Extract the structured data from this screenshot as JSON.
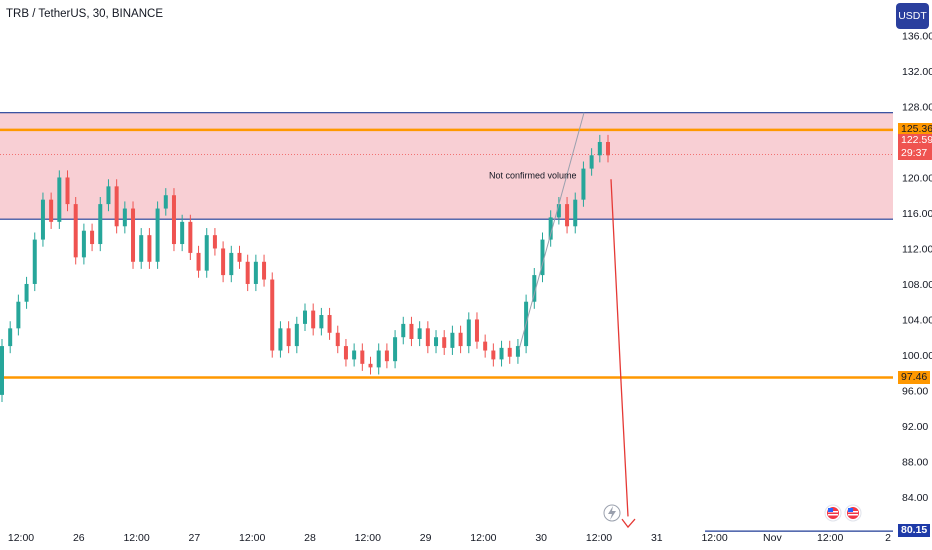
{
  "header": {
    "symbol": "TRB / TetherUS, 30, BINANCE"
  },
  "currency_button": {
    "label": "USDT"
  },
  "colors": {
    "up": "#26a69a",
    "down": "#ef5350",
    "zone": "#f7c7cc",
    "orange": "#ff9800",
    "blue": "#1f3b95",
    "arrow": "#e53935",
    "current_label": "#ef5350",
    "target_label": "#1e3aa8"
  },
  "annotation": {
    "text": "Not confirmed volume"
  },
  "price_tags": {
    "resistance": "125.36",
    "current_price": "122.59",
    "countdown": "29:37",
    "support": "97.46",
    "target": "80.15"
  },
  "chart_data": {
    "type": "candlestick",
    "y_axis": {
      "ticks": [
        84,
        88,
        92,
        96,
        100,
        104,
        108,
        112,
        116,
        120,
        124,
        128,
        132,
        136
      ],
      "tick_labels": [
        "84.00",
        "88.00",
        "92.00",
        "96.00",
        "100.00",
        "104.00",
        "108.00",
        "112.00",
        "116.00",
        "120.00",
        "124.00",
        "128.00",
        "132.00",
        "136.00"
      ],
      "range": [
        80.5,
        140
      ]
    },
    "x_axis": {
      "tick_labels": [
        "12:00",
        "26",
        "12:00",
        "27",
        "12:00",
        "28",
        "12:00",
        "29",
        "12:00",
        "30",
        "12:00",
        "31",
        "12:00",
        "Nov",
        "12:00",
        "2"
      ],
      "range": [
        "2023-10-25 06:00",
        "2023-11-02 00:00"
      ]
    },
    "levels": {
      "zone_top": 127.3,
      "zone_bottom": 115.3,
      "resistance": 125.36,
      "support": 97.46,
      "current_price": 122.59,
      "target": 80.15
    },
    "series": [
      {
        "values": [
          [
            95.5,
            101.0
          ],
          [
            101.0,
            103.0
          ],
          [
            103.0,
            106.0
          ],
          [
            106.0,
            108.0
          ],
          [
            108.0,
            113.0
          ],
          [
            113.0,
            117.5
          ],
          [
            117.5,
            115.0
          ],
          [
            115.0,
            120.0
          ],
          [
            120.0,
            117.0
          ],
          [
            117.0,
            111.0
          ],
          [
            111.0,
            114.0
          ],
          [
            114.0,
            112.5
          ],
          [
            112.5,
            117.0
          ],
          [
            117.0,
            119.0
          ],
          [
            119.0,
            114.5
          ],
          [
            114.5,
            116.5
          ],
          [
            116.5,
            110.5
          ],
          [
            110.5,
            113.5
          ],
          [
            113.5,
            110.5
          ],
          [
            110.5,
            116.5
          ],
          [
            116.5,
            118.0
          ],
          [
            118.0,
            112.5
          ],
          [
            112.5,
            115.0
          ],
          [
            115.0,
            111.5
          ],
          [
            111.5,
            109.5
          ],
          [
            109.5,
            113.5
          ],
          [
            113.5,
            112.0
          ],
          [
            112.0,
            109.0
          ],
          [
            109.0,
            111.5
          ],
          [
            111.5,
            110.5
          ],
          [
            110.5,
            108.0
          ],
          [
            108.0,
            110.5
          ],
          [
            110.5,
            108.5
          ],
          [
            108.5,
            100.5
          ],
          [
            100.5,
            103.0
          ],
          [
            103.0,
            101.0
          ],
          [
            101.0,
            103.5
          ],
          [
            103.5,
            105.0
          ],
          [
            105.0,
            103.0
          ],
          [
            103.0,
            104.5
          ],
          [
            104.5,
            102.5
          ],
          [
            102.5,
            101.0
          ],
          [
            101.0,
            99.5
          ],
          [
            99.5,
            100.5
          ],
          [
            100.5,
            99.0
          ],
          [
            99.0,
            98.6
          ],
          [
            98.6,
            100.5
          ],
          [
            100.5,
            99.3
          ],
          [
            99.3,
            102.0
          ],
          [
            102.0,
            103.5
          ],
          [
            103.5,
            101.8
          ],
          [
            101.8,
            103.0
          ],
          [
            103.0,
            101.0
          ],
          [
            101.0,
            102.0
          ],
          [
            102.0,
            100.8
          ],
          [
            100.8,
            102.5
          ],
          [
            102.5,
            101.0
          ],
          [
            101.0,
            104.0
          ],
          [
            104.0,
            101.5
          ],
          [
            101.5,
            100.5
          ],
          [
            100.5,
            99.5
          ],
          [
            99.5,
            100.8
          ],
          [
            100.8,
            99.8
          ],
          [
            99.8,
            101.0
          ],
          [
            101.0,
            106.0
          ],
          [
            106.0,
            109.0
          ],
          [
            109.0,
            113.0
          ],
          [
            113.0,
            115.5
          ],
          [
            115.5,
            117.0
          ],
          [
            117.0,
            114.5
          ],
          [
            114.5,
            117.5
          ],
          [
            117.5,
            121.0
          ],
          [
            121.0,
            122.5
          ],
          [
            122.5,
            124.0
          ],
          [
            124.0,
            122.5
          ]
        ]
      }
    ]
  }
}
